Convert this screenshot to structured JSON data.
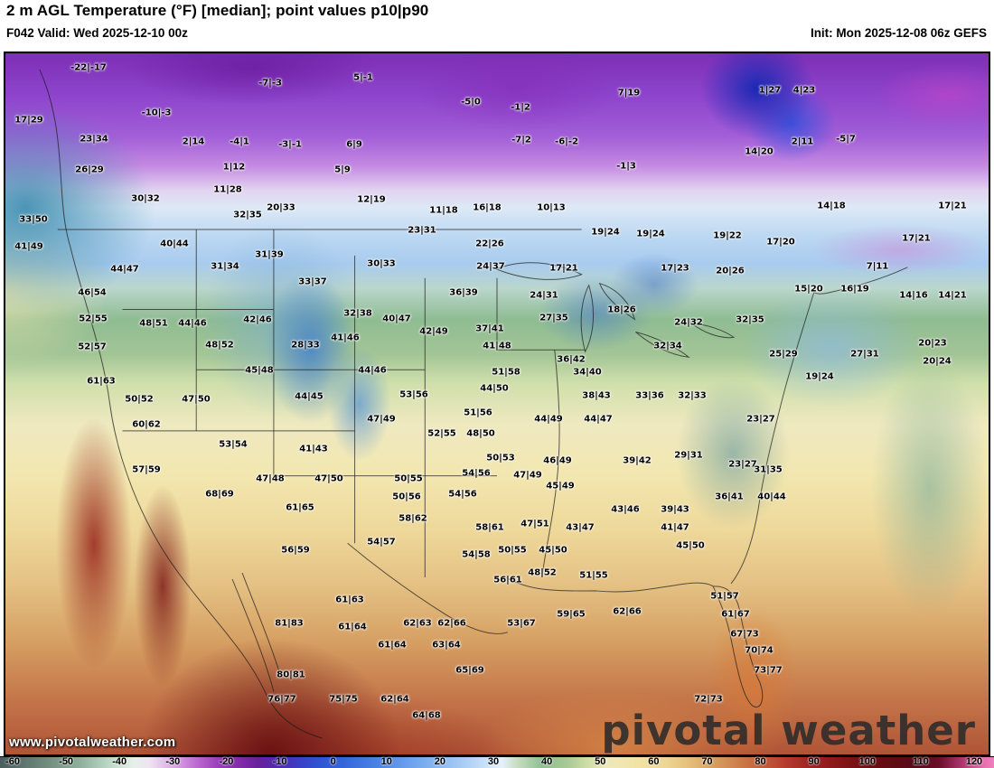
{
  "header": {
    "title": "2 m AGL Temperature (°F) [median]; point values p10|p90",
    "valid": "F042 Valid: Wed 2025-12-10 00z",
    "init": "Init: Mon 2025-12-08 06z GEFS"
  },
  "watermarks": {
    "url_text": "www.pivotalweather.com",
    "brand_text": "pivotal weather"
  },
  "colorbar": {
    "units": "°F",
    "min": -60,
    "max": 120,
    "ticks": [
      "-60",
      "-50",
      "-40",
      "-30",
      "-20",
      "-10",
      "0",
      "10",
      "20",
      "30",
      "40",
      "50",
      "60",
      "70",
      "80",
      "90",
      "100",
      "110",
      "120"
    ]
  },
  "colors": {
    "cold_purple": "#7d28a6",
    "cool_blue": "#3365da",
    "mild_green": "#90bf92",
    "warm_yellow": "#eee9bb",
    "hot_red": "#8f1a1c",
    "extreme_pink": "#e570ae"
  },
  "map": {
    "model": "GEFS",
    "points": [
      [
        96,
        73,
        "-22|-17"
      ],
      [
        297,
        90,
        "-7|-3"
      ],
      [
        400,
        84,
        "5|-1"
      ],
      [
        519,
        111,
        "-5|0"
      ],
      [
        694,
        101,
        "7|19"
      ],
      [
        850,
        98,
        "1|27"
      ],
      [
        888,
        98,
        "4|23"
      ],
      [
        30,
        131,
        "17|29"
      ],
      [
        171,
        123,
        "-10|-3"
      ],
      [
        574,
        117,
        "-1|2"
      ],
      [
        102,
        152,
        "23|34"
      ],
      [
        212,
        155,
        "2|14"
      ],
      [
        263,
        155,
        "-4|1"
      ],
      [
        319,
        158,
        "-3|-1"
      ],
      [
        390,
        158,
        "6|9"
      ],
      [
        575,
        153,
        "-7|2"
      ],
      [
        625,
        155,
        "-6|-2"
      ],
      [
        886,
        155,
        "2|11"
      ],
      [
        934,
        152,
        "-5|7"
      ],
      [
        97,
        186,
        "26|29"
      ],
      [
        257,
        183,
        "1|12"
      ],
      [
        377,
        186,
        "5|9"
      ],
      [
        691,
        182,
        "-1|3"
      ],
      [
        838,
        166,
        "14|20"
      ],
      [
        159,
        218,
        "30|32"
      ],
      [
        250,
        208,
        "11|28"
      ],
      [
        409,
        219,
        "12|19"
      ],
      [
        272,
        236,
        "32|35"
      ],
      [
        309,
        228,
        "20|33"
      ],
      [
        489,
        231,
        "11|18"
      ],
      [
        537,
        228,
        "16|18"
      ],
      [
        608,
        228,
        "10|13"
      ],
      [
        918,
        226,
        "14|18"
      ],
      [
        1052,
        226,
        "17|21"
      ],
      [
        35,
        241,
        "33|50"
      ],
      [
        465,
        253,
        "23|31"
      ],
      [
        30,
        271,
        "41|49"
      ],
      [
        191,
        268,
        "40|44"
      ],
      [
        296,
        280,
        "31|39"
      ],
      [
        540,
        268,
        "22|26"
      ],
      [
        668,
        255,
        "19|24"
      ],
      [
        718,
        257,
        "19|24"
      ],
      [
        803,
        259,
        "19|22"
      ],
      [
        862,
        266,
        "17|20"
      ],
      [
        1012,
        262,
        "17|21"
      ],
      [
        136,
        296,
        "44|47"
      ],
      [
        247,
        293,
        "31|34"
      ],
      [
        420,
        290,
        "30|33"
      ],
      [
        541,
        293,
        "24|37"
      ],
      [
        622,
        295,
        "17|21"
      ],
      [
        745,
        295,
        "17|23"
      ],
      [
        806,
        298,
        "20|26"
      ],
      [
        969,
        293,
        "7|11"
      ],
      [
        100,
        322,
        "46|54"
      ],
      [
        344,
        310,
        "33|37"
      ],
      [
        511,
        322,
        "36|39"
      ],
      [
        600,
        325,
        "24|31"
      ],
      [
        893,
        318,
        "15|20"
      ],
      [
        944,
        318,
        "16|19"
      ],
      [
        1009,
        325,
        "14|16"
      ],
      [
        1052,
        325,
        "14|21"
      ],
      [
        101,
        351,
        "52|55"
      ],
      [
        168,
        356,
        "48|51"
      ],
      [
        211,
        356,
        "44|46"
      ],
      [
        283,
        352,
        "42|46"
      ],
      [
        394,
        345,
        "32|38"
      ],
      [
        437,
        351,
        "40|47"
      ],
      [
        478,
        365,
        "42|49"
      ],
      [
        540,
        362,
        "37|41"
      ],
      [
        611,
        350,
        "27|35"
      ],
      [
        686,
        341,
        "18|26"
      ],
      [
        760,
        355,
        "24|32"
      ],
      [
        828,
        352,
        "32|35"
      ],
      [
        955,
        390,
        "27|31"
      ],
      [
        100,
        382,
        "52|57"
      ],
      [
        241,
        380,
        "48|52"
      ],
      [
        336,
        380,
        "28|33"
      ],
      [
        380,
        372,
        "41|46"
      ],
      [
        548,
        381,
        "41|48"
      ],
      [
        630,
        396,
        "36|42"
      ],
      [
        737,
        381,
        "32|34"
      ],
      [
        865,
        390,
        "25|29"
      ],
      [
        1030,
        378,
        "20|23"
      ],
      [
        1035,
        398,
        "20|24"
      ],
      [
        285,
        408,
        "45|48"
      ],
      [
        410,
        408,
        "44|46"
      ],
      [
        558,
        410,
        "51|58"
      ],
      [
        545,
        428,
        "44|50"
      ],
      [
        648,
        410,
        "34|40"
      ],
      [
        905,
        415,
        "19|24"
      ],
      [
        110,
        420,
        "61|63"
      ],
      [
        340,
        437,
        "44|45"
      ],
      [
        456,
        435,
        "53|56"
      ],
      [
        152,
        440,
        "50|52"
      ],
      [
        215,
        440,
        "47|50"
      ],
      [
        527,
        455,
        "51|56"
      ],
      [
        658,
        436,
        "38|43"
      ],
      [
        717,
        436,
        "33|36"
      ],
      [
        764,
        436,
        "32|33"
      ],
      [
        420,
        462,
        "47|49"
      ],
      [
        487,
        478,
        "52|55"
      ],
      [
        530,
        478,
        "48|50"
      ],
      [
        605,
        462,
        "44|49"
      ],
      [
        660,
        462,
        "44|47"
      ],
      [
        160,
        468,
        "60|62"
      ],
      [
        256,
        490,
        "53|54"
      ],
      [
        345,
        495,
        "41|43"
      ],
      [
        840,
        462,
        "23|27"
      ],
      [
        297,
        528,
        "47|48"
      ],
      [
        362,
        528,
        "47|50"
      ],
      [
        450,
        528,
        "50|55"
      ],
      [
        525,
        522,
        "54|56"
      ],
      [
        552,
        505,
        "50|53"
      ],
      [
        615,
        508,
        "46|49"
      ],
      [
        582,
        524,
        "47|49"
      ],
      [
        618,
        536,
        "45|49"
      ],
      [
        703,
        508,
        "39|42"
      ],
      [
        760,
        502,
        "29|31"
      ],
      [
        820,
        512,
        "23|27"
      ],
      [
        848,
        518,
        "31|35"
      ],
      [
        160,
        518,
        "57|59"
      ],
      [
        241,
        545,
        "68|69"
      ],
      [
        448,
        548,
        "50|56"
      ],
      [
        510,
        545,
        "54|56"
      ],
      [
        330,
        560,
        "61|65"
      ],
      [
        690,
        562,
        "43|46"
      ],
      [
        745,
        562,
        "39|43"
      ],
      [
        805,
        548,
        "36|41"
      ],
      [
        852,
        548,
        "40|44"
      ],
      [
        590,
        578,
        "47|51"
      ],
      [
        745,
        582,
        "41|47"
      ],
      [
        640,
        582,
        "43|47"
      ],
      [
        540,
        582,
        "58|61"
      ],
      [
        455,
        572,
        "58|62"
      ],
      [
        420,
        598,
        "54|57"
      ],
      [
        325,
        607,
        "56|59"
      ],
      [
        762,
        602,
        "45|50"
      ],
      [
        525,
        612,
        "54|58"
      ],
      [
        565,
        607,
        "50|55"
      ],
      [
        610,
        607,
        "45|50"
      ],
      [
        598,
        632,
        "48|52"
      ],
      [
        655,
        635,
        "51|55"
      ],
      [
        560,
        640,
        "56|61"
      ],
      [
        385,
        662,
        "61|63"
      ],
      [
        630,
        678,
        "59|65"
      ],
      [
        575,
        688,
        "53|67"
      ],
      [
        692,
        675,
        "62|66"
      ],
      [
        800,
        658,
        "51|57"
      ],
      [
        812,
        678,
        "61|67"
      ],
      [
        822,
        700,
        "67|73"
      ],
      [
        838,
        718,
        "70|74"
      ],
      [
        848,
        740,
        "73|77"
      ],
      [
        782,
        772,
        "72|73"
      ],
      [
        318,
        688,
        "81|83"
      ],
      [
        388,
        692,
        "61|64"
      ],
      [
        460,
        688,
        "62|63"
      ],
      [
        498,
        688,
        "62|66"
      ],
      [
        432,
        712,
        "61|64"
      ],
      [
        492,
        712,
        "63|64"
      ],
      [
        518,
        740,
        "65|69"
      ],
      [
        320,
        745,
        "80|81"
      ],
      [
        378,
        772,
        "75|75"
      ],
      [
        435,
        772,
        "62|64"
      ],
      [
        470,
        790,
        "64|68"
      ],
      [
        310,
        772,
        "76|77"
      ]
    ]
  }
}
